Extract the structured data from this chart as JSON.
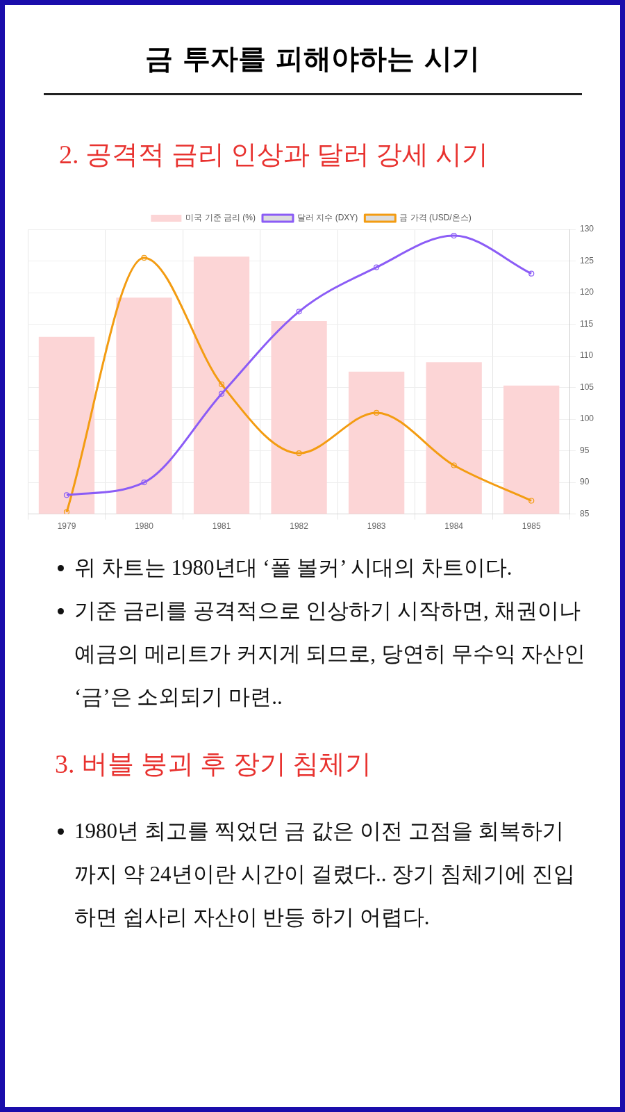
{
  "chart_data": {
    "type": "bar",
    "title": "금 투자를 피해야하는 시기",
    "subtitle": "2. 공격적 금리 인상과 달러 강세 시기",
    "categories": [
      "1979",
      "1980",
      "1981",
      "1982",
      "1983",
      "1984",
      "1985"
    ],
    "series": [
      {
        "name": "미국 기준 금리 (%)",
        "color": "#fcd5d6",
        "values": [
          113,
          119.2,
          125.7,
          115.5,
          107.5,
          109,
          105.3
        ]
      },
      {
        "name": "달러 지수 (DXY)",
        "type": "line",
        "color": "#8b5cf6",
        "values": [
          88,
          90,
          104,
          117,
          124,
          129,
          123
        ]
      },
      {
        "name": "금 가격 (USD/온스)",
        "type": "line",
        "color": "#f39c12",
        "values": [
          85.3,
          125.5,
          105.5,
          94.6,
          101,
          92.7,
          87.1
        ]
      }
    ],
    "ylim": [
      85,
      130
    ],
    "yticks": [
      85,
      90,
      95,
      100,
      105,
      110,
      115,
      120,
      125,
      130
    ],
    "grid": true,
    "legend": "top",
    "marker": "circle",
    "annotations": [
      "위 차트는 1980년대 ‘폴 볼커’ 시대의 차트이다.",
      "기준 금리를 공격적으로 인상하기 시작하면, 채권이나 예금의 메리트가 커지게 되므로, 당연히 무수익 자산인 ‘금’은 소외되기 마련..",
      "3. 버블 붕괴 후 장기 침체기",
      "1980년 최고를 찍었던 금 값은 이전 고점을 회복하기 까지 약 24년이란 시간이 걸렸다.. 장기 침체기에 진입하면 쉽사리 자산이 반등 하기 어렵다."
    ]
  }
}
